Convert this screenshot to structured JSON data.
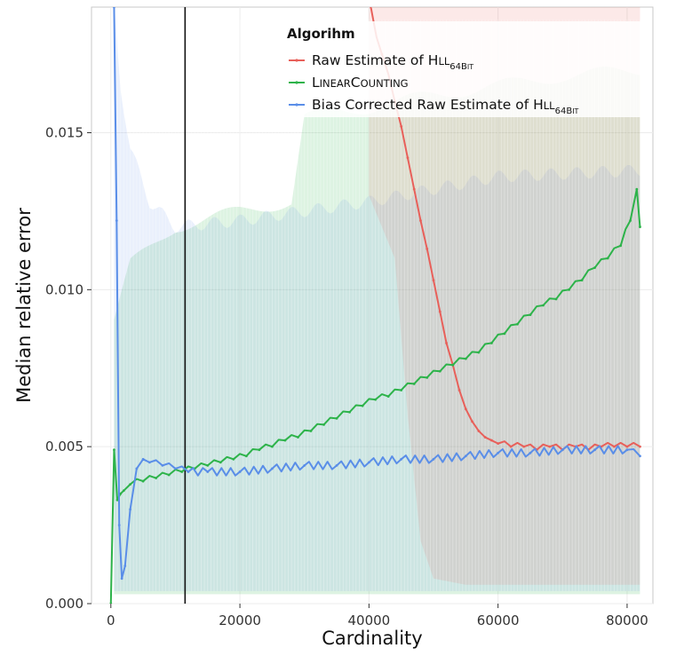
{
  "chart_data": {
    "type": "line",
    "xlabel": "Cardinality",
    "ylabel": "Median relative error",
    "xlim": [
      -3000,
      84000
    ],
    "ylim": [
      0,
      0.019
    ],
    "x_ticks": [
      0,
      20000,
      40000,
      60000,
      80000
    ],
    "x_tick_labels": [
      "0",
      "20000",
      "40000",
      "60000",
      "80000"
    ],
    "y_ticks": [
      0.0,
      0.005,
      0.01,
      0.015
    ],
    "y_tick_labels": [
      "0.000",
      "0.005",
      "0.010",
      "0.015"
    ],
    "grid": true,
    "legend": {
      "title": "Algorihm",
      "placement": "top-right",
      "entries": [
        {
          "label": "Raw Estimate of HLL",
          "sub": "64BIT",
          "color": "#e8605a"
        },
        {
          "label": "LinearCounting",
          "sub": "",
          "color": "#2db34a"
        },
        {
          "label": "Bias Corrected Raw Estimate of HLL",
          "sub": "64BIT",
          "color": "#5a8ee8"
        }
      ]
    },
    "threshold_line_x": 11500,
    "series": [
      {
        "name": "Raw Estimate of HLL64BIT",
        "color": "#e8605a",
        "x": [
          39500,
          42000,
          44000,
          45000,
          46000,
          47000,
          48000,
          49000,
          50000,
          51000,
          52000,
          53000,
          54000,
          55000,
          56000,
          57000,
          58000,
          59000,
          60000,
          62000,
          64000,
          66000,
          68000,
          70000,
          72000,
          74000,
          76000,
          78000,
          80000,
          82000
        ],
        "y": [
          0.0195,
          0.0175,
          0.016,
          0.0152,
          0.0142,
          0.0132,
          0.0122,
          0.0113,
          0.0103,
          0.0093,
          0.0083,
          0.0076,
          0.0068,
          0.0062,
          0.0058,
          0.0055,
          0.0053,
          0.0052,
          0.0051,
          0.005,
          0.005,
          0.0049,
          0.005,
          0.0049,
          0.005,
          0.0049,
          0.005,
          0.005,
          0.005,
          0.005
        ],
        "band_upper": 0.0187,
        "band_lower": 0.0005
      },
      {
        "name": "LinearCounting",
        "color": "#2db34a",
        "x": [
          0,
          500,
          1000,
          1500,
          2000,
          3000,
          5000,
          7000,
          9000,
          11000,
          13000,
          15000,
          17000,
          19000,
          21000,
          23000,
          25000,
          27000,
          29000,
          31000,
          33000,
          35000,
          37000,
          39000,
          41000,
          43000,
          45000,
          47000,
          49000,
          51000,
          53000,
          55000,
          57000,
          59000,
          61000,
          63000,
          65000,
          67000,
          69000,
          71000,
          73000,
          75000,
          77000,
          79000,
          80500,
          81500,
          82000
        ],
        "y": [
          0.0,
          0.0049,
          0.0033,
          0.0035,
          0.0036,
          0.0038,
          0.0039,
          0.004,
          0.0041,
          0.0042,
          0.0043,
          0.0044,
          0.0045,
          0.0046,
          0.0047,
          0.0049,
          0.005,
          0.0052,
          0.0053,
          0.0055,
          0.0057,
          0.0059,
          0.0061,
          0.0063,
          0.0065,
          0.0066,
          0.0068,
          0.007,
          0.0072,
          0.0074,
          0.0076,
          0.0078,
          0.008,
          0.0083,
          0.0086,
          0.0089,
          0.0092,
          0.0095,
          0.0097,
          0.01,
          0.0103,
          0.0107,
          0.011,
          0.0114,
          0.0122,
          0.0132,
          0.012
        ],
        "band_upper": 0.0125,
        "band_lower": 0.0003
      },
      {
        "name": "Bias Corrected Raw Estimate of HLL64BIT",
        "color": "#5a8ee8",
        "x": [
          500,
          900,
          1300,
          1700,
          2200,
          3000,
          4000,
          5000,
          6000,
          8000,
          10000,
          12000,
          15000,
          20000,
          25000,
          30000,
          35000,
          40000,
          45000,
          50000,
          55000,
          60000,
          65000,
          70000,
          75000,
          80000,
          82000
        ],
        "y": [
          0.019,
          0.0122,
          0.0025,
          0.0008,
          0.0012,
          0.003,
          0.0043,
          0.0046,
          0.0045,
          0.0044,
          0.0043,
          0.0042,
          0.0042,
          0.0042,
          0.0043,
          0.0044,
          0.0044,
          0.0045,
          0.0046,
          0.0046,
          0.0047,
          0.0048,
          0.0048,
          0.0049,
          0.0049,
          0.0049,
          0.0047
        ],
        "band_upper": 0.012,
        "band_lower": 0.0004
      }
    ]
  }
}
